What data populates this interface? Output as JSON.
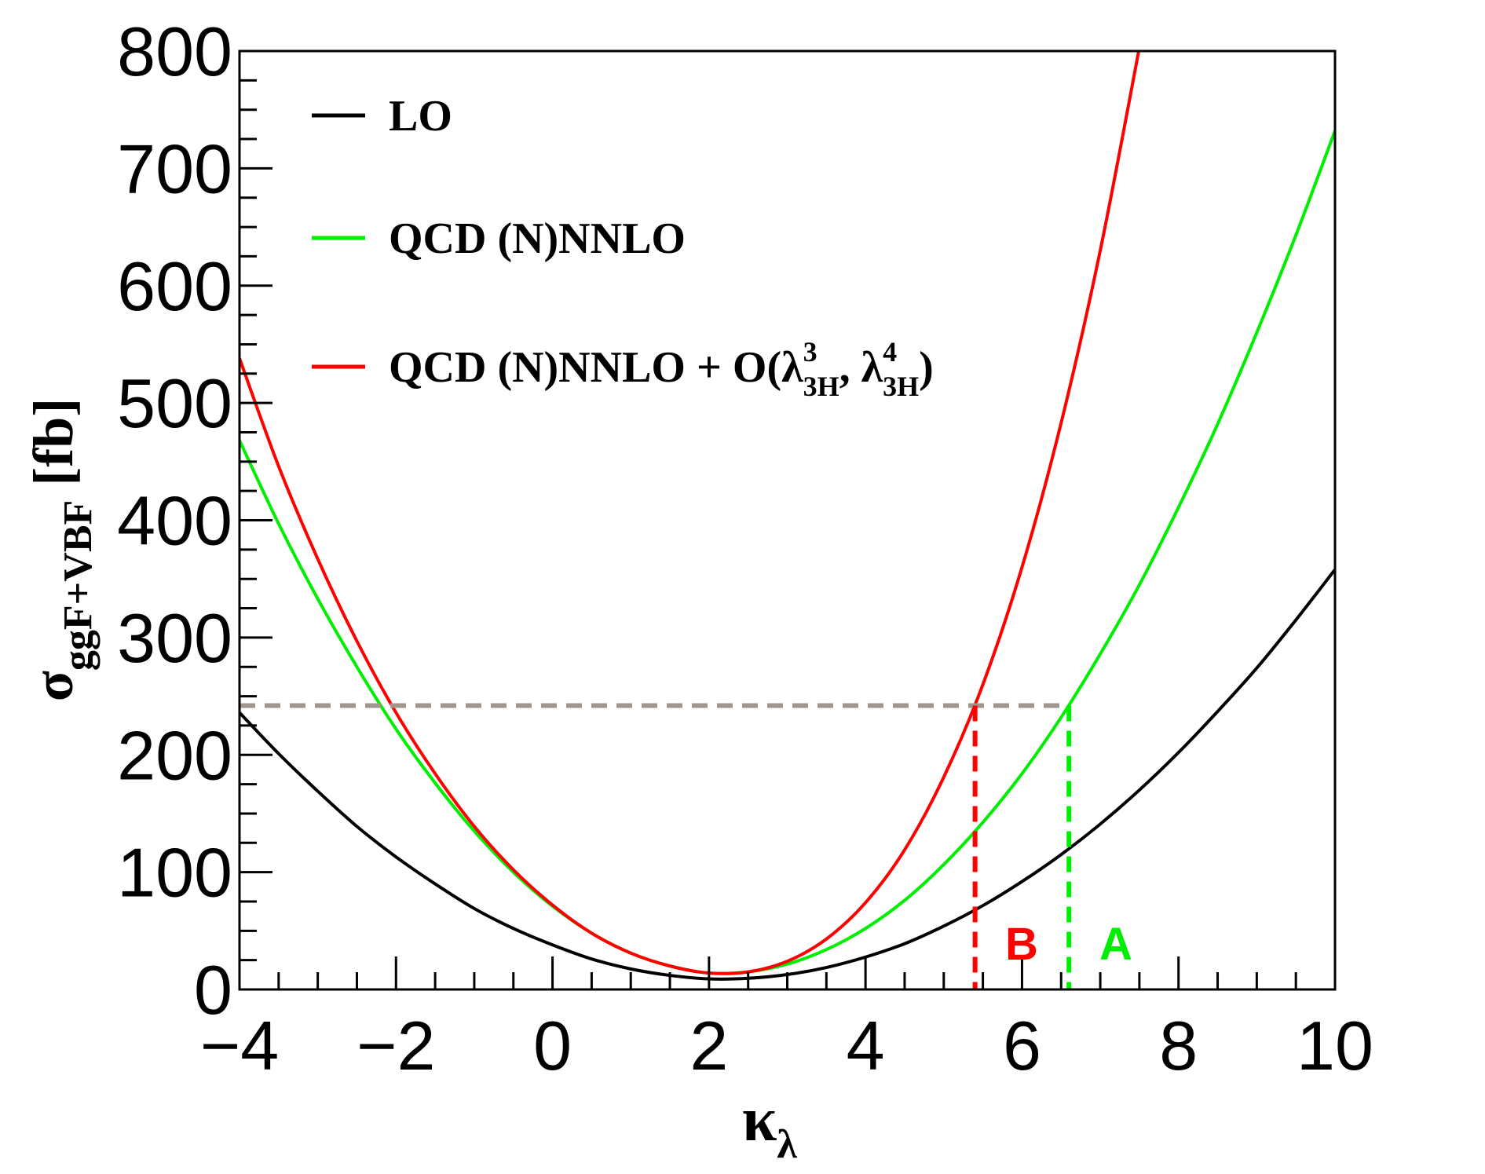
{
  "chart_data": {
    "type": "line",
    "title": "",
    "xlabel": {
      "main": "κ",
      "sub": "λ"
    },
    "ylabel": {
      "main": "σ",
      "sub": "ggF+VBF",
      "unit": "[fb]"
    },
    "xlim": [
      -4,
      10
    ],
    "ylim": [
      0,
      800
    ],
    "xticks": [
      -4,
      -2,
      0,
      2,
      4,
      6,
      8,
      10
    ],
    "xtick_labels": [
      "−4",
      "−2",
      "0",
      "2",
      "4",
      "6",
      "8",
      "10"
    ],
    "yticks": [
      0,
      100,
      200,
      300,
      400,
      500,
      600,
      700,
      800
    ],
    "ytick_labels": [
      "0",
      "100",
      "200",
      "300",
      "400",
      "500",
      "600",
      "700",
      "800"
    ],
    "grid": false,
    "legend_placement": "top-left",
    "legend": [
      {
        "label": "LO",
        "color": "#000000"
      },
      {
        "label": "QCD (N)NNLO",
        "color": "#00ee00"
      },
      {
        "label_main": "QCD (N)NNLO + O(λ",
        "sup1": "3",
        "sub1": "3H",
        "mid": ",  λ",
        "sup2": "4",
        "sub2": "3H",
        "close": ")",
        "color": "#ff0000"
      }
    ],
    "x": [
      -4,
      -3.5,
      -3,
      -2.5,
      -2,
      -1.5,
      -1,
      -0.5,
      0,
      0.5,
      1,
      1.5,
      2,
      2.5,
      3,
      3.5,
      4,
      4.5,
      5,
      5.5,
      6,
      6.5,
      7,
      7.5,
      8,
      8.5,
      9,
      9.5,
      10
    ],
    "series": [
      {
        "name": "LO",
        "color": "#000000",
        "values": [
          236,
          201,
          169,
          139,
          113,
          90,
          69,
          52,
          38,
          26,
          17.5,
          12,
          9,
          9.5,
          12.7,
          18.7,
          27.6,
          39,
          54,
          71.5,
          92,
          115,
          141,
          170,
          202,
          237,
          274,
          315,
          358
        ]
      },
      {
        "name": "QCD (N)NNLO",
        "color": "#00ee00",
        "values": [
          468,
          397,
          333,
          275,
          222,
          176,
          135,
          100,
          71,
          48,
          31,
          20,
          14,
          15,
          21.6,
          34,
          52,
          76,
          106.5,
          142.5,
          184,
          232,
          286,
          345,
          411,
          482,
          560,
          643,
          732
        ]
      },
      {
        "name": "QCD (N)NNLO + O(λ3H^3, λ3H^4)",
        "color": "#ff0000",
        "values": [
          538,
          446,
          367,
          297,
          236,
          184,
          139,
          102,
          72,
          48,
          31,
          20,
          14,
          15,
          24,
          43,
          74,
          119,
          181,
          260,
          360,
          483,
          630,
          803,
          null,
          null,
          null,
          null,
          null
        ]
      }
    ],
    "reference_line": {
      "y": 242,
      "color": "#a0968c",
      "style": "dashed",
      "x_range": [
        -4,
        6.6
      ]
    },
    "markers": [
      {
        "label": "B",
        "x": 5.4,
        "y_top": 242,
        "color": "#ff0000"
      },
      {
        "label": "A",
        "x": 6.6,
        "y_top": 242,
        "color": "#00ee00"
      }
    ]
  }
}
